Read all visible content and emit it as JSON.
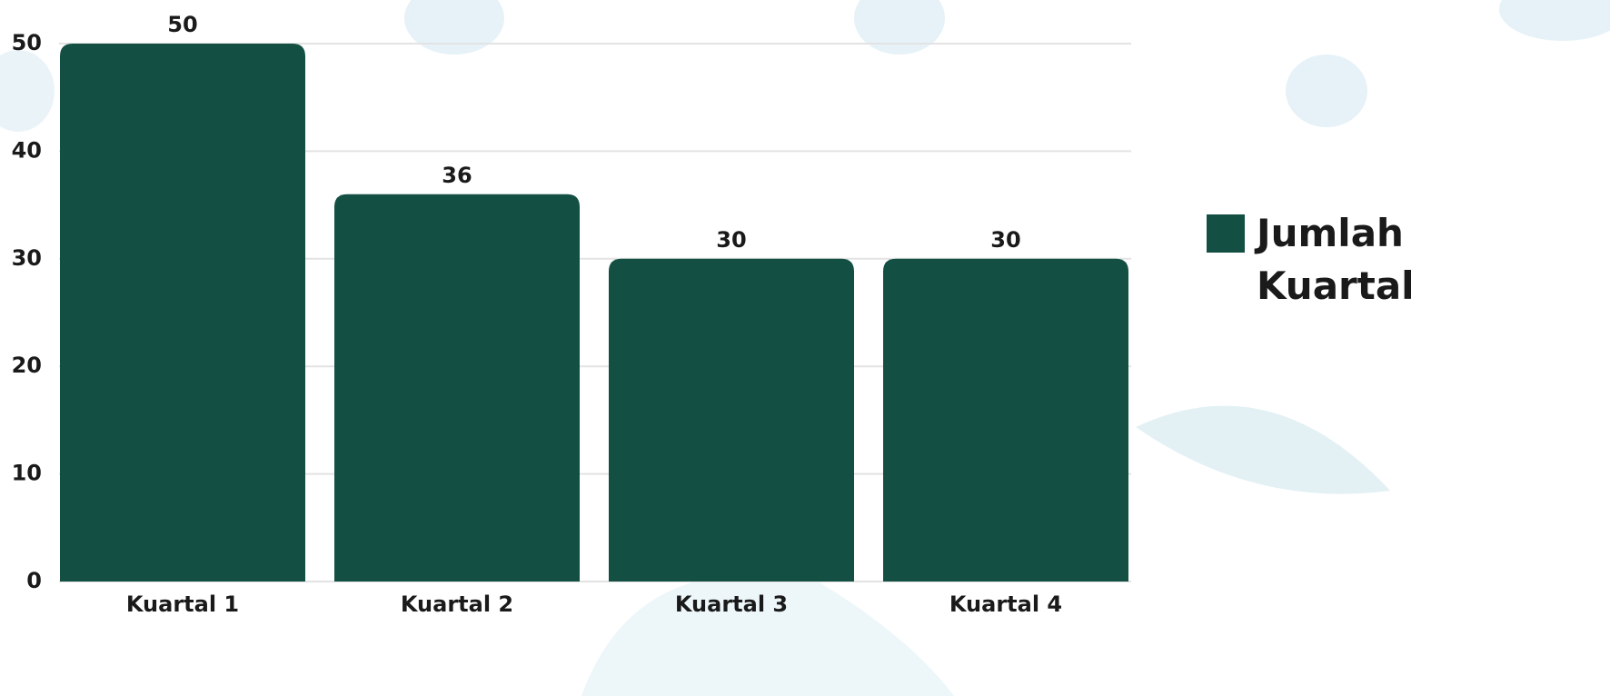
{
  "chart_data": {
    "type": "bar",
    "categories": [
      "Kuartal 1",
      "Kuartal 2",
      "Kuartal 3",
      "Kuartal 4"
    ],
    "series": [
      {
        "name": "Jumlah Kuartal",
        "color": "#134f43",
        "values": [
          50,
          36,
          30,
          30
        ]
      }
    ],
    "ylim": [
      0,
      50
    ],
    "yticks": [
      0,
      10,
      20,
      30,
      40,
      50
    ],
    "grid": true,
    "legend": "right"
  }
}
